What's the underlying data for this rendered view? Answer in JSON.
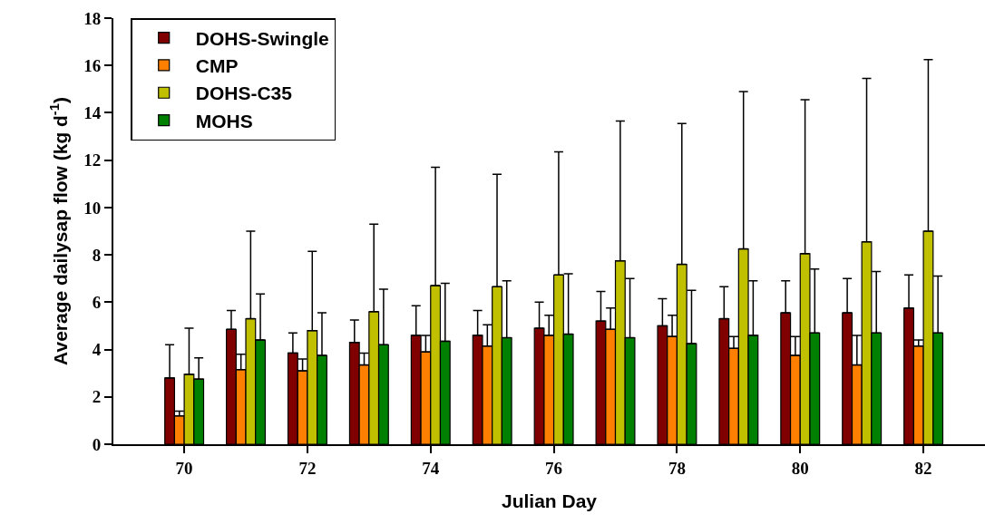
{
  "chart_data": {
    "type": "bar",
    "xlabel": "Julian Day",
    "ylabel": "Average dailysap flow (kg d$^{-1}$)",
    "x": [
      70,
      71,
      72,
      73,
      74,
      75,
      76,
      77,
      78,
      79,
      80,
      81,
      82
    ],
    "xlim": [
      68.85,
      83.0
    ],
    "xticks": [
      70,
      72,
      74,
      76,
      78,
      80,
      82
    ],
    "ylim": [
      0,
      18
    ],
    "yticks": [
      0,
      2,
      4,
      6,
      8,
      10,
      12,
      14,
      16,
      18
    ],
    "legend": "top left",
    "series": [
      {
        "name": "DOHS-Swingle",
        "color": "#800000",
        "values": [
          2.8,
          4.85,
          3.85,
          4.3,
          4.6,
          4.6,
          4.9,
          5.2,
          5.0,
          5.3,
          5.55,
          5.55,
          5.75
        ],
        "errors": [
          [
            2.8,
            4.2
          ],
          [
            4.85,
            5.65
          ],
          [
            3.85,
            4.7
          ],
          [
            4.3,
            5.25
          ],
          [
            4.6,
            5.85
          ],
          [
            4.6,
            5.65
          ],
          [
            4.9,
            6.0
          ],
          [
            5.2,
            6.45
          ],
          [
            5.0,
            6.15
          ],
          [
            5.3,
            6.65
          ],
          [
            5.55,
            6.9
          ],
          [
            5.55,
            7.0
          ],
          [
            5.75,
            7.15
          ]
        ]
      },
      {
        "name": "CMP",
        "color": "#ff8000",
        "values": [
          1.2,
          3.15,
          3.1,
          3.35,
          3.9,
          4.15,
          4.6,
          4.85,
          4.55,
          4.05,
          3.75,
          3.35,
          4.15
        ],
        "errors": [
          [
            1.2,
            1.4
          ],
          [
            3.15,
            3.8
          ],
          [
            3.1,
            3.6
          ],
          [
            3.35,
            3.85
          ],
          [
            3.9,
            4.6
          ],
          [
            4.15,
            5.05
          ],
          [
            4.6,
            5.45
          ],
          [
            4.85,
            5.75
          ],
          [
            4.55,
            5.45
          ],
          [
            4.05,
            4.55
          ],
          [
            3.75,
            4.55
          ],
          [
            3.35,
            4.6
          ],
          [
            4.15,
            4.4
          ]
        ]
      },
      {
        "name": "DOHS-C35",
        "color": "#c0c000",
        "values": [
          2.95,
          5.3,
          4.8,
          5.6,
          6.7,
          6.65,
          7.15,
          7.75,
          7.6,
          8.25,
          8.05,
          8.55,
          9.0
        ],
        "errors": [
          [
            2.95,
            4.9
          ],
          [
            5.3,
            9.0
          ],
          [
            4.8,
            8.15
          ],
          [
            5.6,
            9.3
          ],
          [
            6.7,
            11.7
          ],
          [
            6.65,
            11.4
          ],
          [
            7.15,
            12.35
          ],
          [
            7.75,
            13.65
          ],
          [
            7.6,
            13.55
          ],
          [
            8.25,
            14.9
          ],
          [
            8.05,
            14.55
          ],
          [
            8.55,
            15.45
          ],
          [
            9.0,
            16.25
          ]
        ]
      },
      {
        "name": "MOHS",
        "color": "#008000",
        "values": [
          2.75,
          4.4,
          3.75,
          4.2,
          4.35,
          4.5,
          4.65,
          4.5,
          4.25,
          4.6,
          4.7,
          4.7,
          4.7
        ],
        "errors": [
          [
            2.75,
            3.65
          ],
          [
            4.4,
            6.35
          ],
          [
            3.75,
            5.55
          ],
          [
            4.2,
            6.55
          ],
          [
            4.35,
            6.8
          ],
          [
            4.5,
            6.9
          ],
          [
            4.65,
            7.2
          ],
          [
            4.5,
            7.0
          ],
          [
            4.25,
            6.5
          ],
          [
            4.6,
            6.9
          ],
          [
            4.7,
            7.4
          ],
          [
            4.7,
            7.3
          ],
          [
            4.7,
            7.1
          ]
        ]
      }
    ]
  }
}
